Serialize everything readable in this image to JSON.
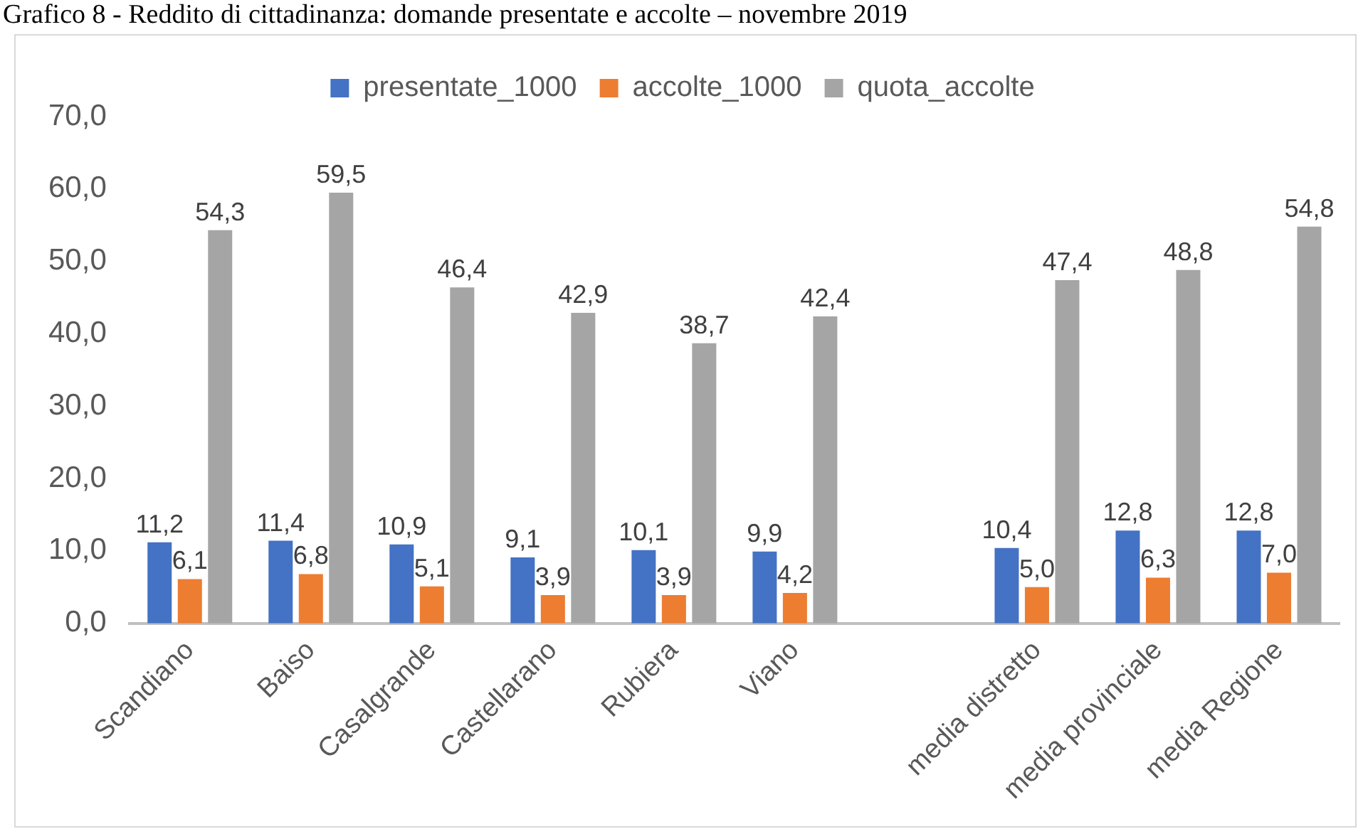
{
  "chart_data": {
    "type": "bar",
    "title": "Grafico 8 - Reddito di cittadinanza: domande presentate e accolte – novembre 2019",
    "categories": [
      "Scandiano",
      "Baiso",
      "Casalgrande",
      "Castellarano",
      "Rubiera",
      "Viano",
      null,
      "media distretto",
      "media provinciale",
      "media Regione"
    ],
    "series": [
      {
        "name": "presentate_1000",
        "color": "#4472c4",
        "values": [
          11.2,
          11.4,
          10.9,
          9.1,
          10.1,
          9.9,
          null,
          10.4,
          12.8,
          12.8
        ],
        "value_labels": [
          "11,2",
          "11,4",
          "10,9",
          "9,1",
          "10,1",
          "9,9",
          null,
          "10,4",
          "12,8",
          "12,8"
        ]
      },
      {
        "name": "accolte_1000",
        "color": "#ed7d31",
        "values": [
          6.1,
          6.8,
          5.1,
          3.9,
          3.9,
          4.2,
          null,
          5.0,
          6.3,
          7.0
        ],
        "value_labels": [
          "6,1",
          "6,8",
          "5,1",
          "3,9",
          "3,9",
          "4,2",
          null,
          "5,0",
          "6,3",
          "7,0"
        ]
      },
      {
        "name": "quota_accolte",
        "color": "#a5a5a5",
        "values": [
          54.3,
          59.5,
          46.4,
          42.9,
          38.7,
          42.4,
          null,
          47.4,
          48.8,
          54.8
        ],
        "value_labels": [
          "54,3",
          "59,5",
          "46,4",
          "42,9",
          "38,7",
          "42,4",
          null,
          "47,4",
          "48,8",
          "54,8"
        ]
      }
    ],
    "ylim": [
      0,
      70
    ],
    "yticks": [
      {
        "value": 0,
        "label": "0,0"
      },
      {
        "value": 10,
        "label": "10,0"
      },
      {
        "value": 20,
        "label": "20,0"
      },
      {
        "value": 30,
        "label": "30,0"
      },
      {
        "value": 40,
        "label": "40,0"
      },
      {
        "value": 50,
        "label": "50,0"
      },
      {
        "value": 60,
        "label": "60,0"
      },
      {
        "value": 70,
        "label": "70,0"
      }
    ],
    "legend": "top"
  }
}
